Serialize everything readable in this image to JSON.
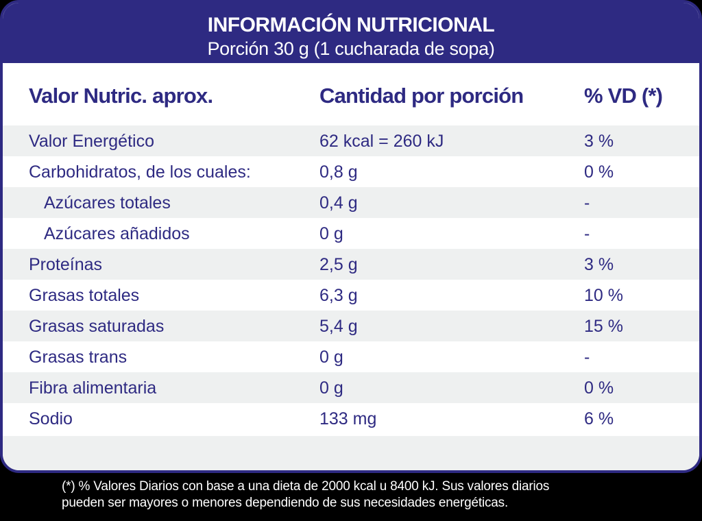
{
  "header": {
    "title": "INFORMACIÓN NUTRICIONAL",
    "subtitle": "Porción 30 g (1 cucharada de sopa)"
  },
  "columns": [
    "Valor Nutric. aprox.",
    "Cantidad por porción",
    "% VD (*)"
  ],
  "rows": [
    {
      "name": "Valor Energético",
      "amount": "62 kcal = 260 kJ",
      "dv": "3 %"
    },
    {
      "name": "Carbohidratos, de los cuales:",
      "amount": "0,8 g",
      "dv": "0 %"
    },
    {
      "name": "Azúcares totales",
      "amount": "0,4 g",
      "dv": "-"
    },
    {
      "name": "Azúcares añadidos",
      "amount": "0 g",
      "dv": "-"
    },
    {
      "name": "Proteínas",
      "amount": "2,5 g",
      "dv": "3 %"
    },
    {
      "name": "Grasas totales",
      "amount": "6,3 g",
      "dv": "10 %"
    },
    {
      "name": "Grasas saturadas",
      "amount": "5,4 g",
      "dv": "15 %"
    },
    {
      "name": "Grasas trans",
      "amount": "0 g",
      "dv": "-"
    },
    {
      "name": "Fibra alimentaria",
      "amount": "0 g",
      "dv": "0 %"
    },
    {
      "name": "Sodio",
      "amount": "133 mg",
      "dv": "6 %"
    }
  ],
  "footnote": {
    "line1": "(*) % Valores Diarios con base a una dieta de 2000 kcal u 8400 kJ. Sus valores diarios",
    "line2": "pueden ser mayores o menores dependiendo de sus necesidades energéticas."
  },
  "colors": {
    "brand": "#2e2a82",
    "stripe": "#eef0f0",
    "footer_bg": "#000000"
  }
}
